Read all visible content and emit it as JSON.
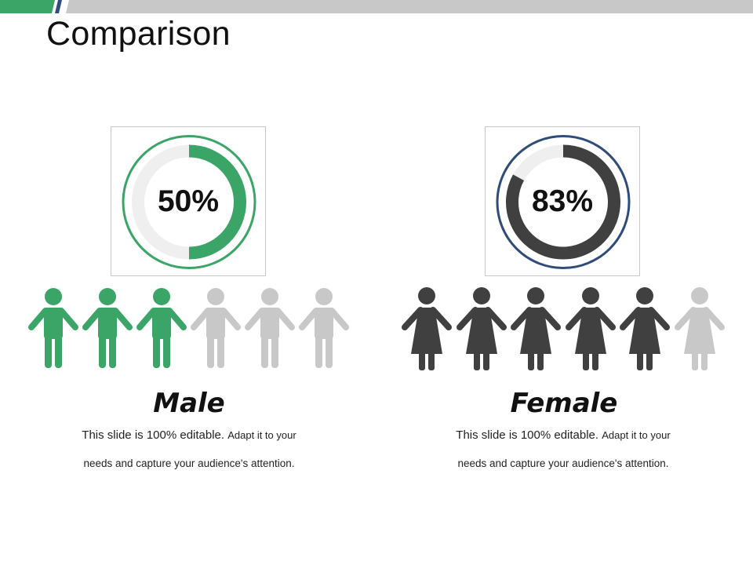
{
  "title": "Comparison",
  "accent": {
    "green": "#3aa566",
    "navy": "#2f4c7a",
    "dark": "#404040",
    "inactive": "#c8c8c8",
    "track": "#efefef"
  },
  "male": {
    "label": "Male",
    "percent_text": "50%",
    "percent": 50,
    "icon": "male-person-icon",
    "figures_total": 6,
    "figures_active": 3,
    "desc_part1": "This slide is 100% editable.",
    "desc_part2": "Adapt it to your",
    "desc_line2": "needs and capture your audience's attention."
  },
  "female": {
    "label": "Female",
    "percent_text": "83%",
    "percent": 83,
    "icon": "female-person-icon",
    "figures_total": 6,
    "figures_active": 5,
    "desc_part1": "This slide is 100% editable.",
    "desc_part2": "Adapt it to your",
    "desc_line2": "needs and capture your audience's attention."
  }
}
